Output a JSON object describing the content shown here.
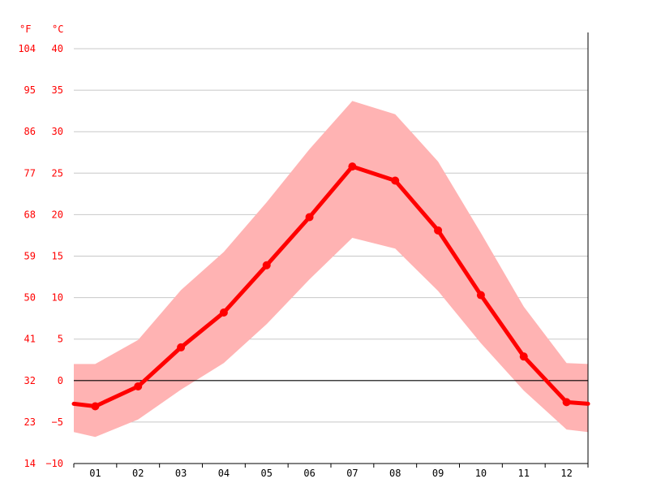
{
  "chart_data": {
    "type": "line",
    "title": "",
    "xlabel": "",
    "ylabel": "",
    "categories": [
      "01",
      "02",
      "03",
      "04",
      "05",
      "06",
      "07",
      "08",
      "09",
      "10",
      "11",
      "12"
    ],
    "series": [
      {
        "values": [
          -3.1,
          -0.7,
          4.0,
          8.2,
          13.9,
          19.7,
          25.8,
          24.1,
          18.1,
          10.3,
          2.9,
          -2.6
        ]
      }
    ],
    "band": {
      "upper": [
        2.0,
        4.9,
        10.9,
        15.5,
        21.5,
        27.9,
        33.7,
        32.1,
        26.4,
        17.8,
        8.9,
        2.1
      ],
      "lower": [
        -6.8,
        -4.7,
        -1.1,
        2.1,
        6.8,
        12.2,
        17.2,
        15.9,
        10.8,
        4.5,
        -1.2,
        -5.9
      ]
    },
    "edge_values": {
      "left": -2.8,
      "right": -2.8,
      "band_upper_left": 2.0,
      "band_upper_right": 2.0,
      "band_lower_left": -6.2,
      "band_lower_right": -6.2
    },
    "ylim": [
      -10,
      40
    ],
    "y_ticks_c": [
      "40",
      "35",
      "30",
      "25",
      "20",
      "15",
      "10",
      "5",
      "0",
      "−5",
      "−10"
    ],
    "y_ticks_f": [
      "104",
      "95",
      "86",
      "77",
      "68",
      "59",
      "50",
      "41",
      "32",
      "23",
      "14"
    ],
    "units": {
      "f": "°F",
      "c": "°C"
    },
    "grid": true,
    "legend": "none",
    "colors": {
      "line": "#ff0000",
      "band": "#ffb3b3",
      "grid": "#c8c8c8",
      "zero_line": "#000000",
      "tick_text_y": "#ff0000",
      "tick_text_x": "#000000"
    }
  }
}
